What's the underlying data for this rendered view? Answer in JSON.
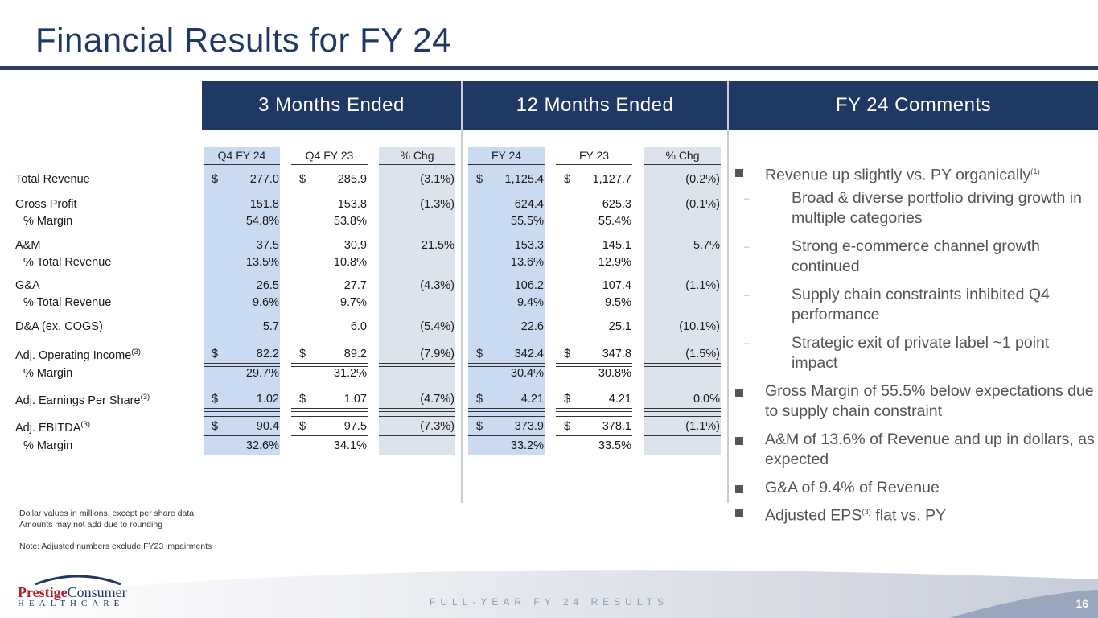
{
  "title": "Financial Results for FY 24",
  "headers": {
    "three_months": "3 Months Ended",
    "twelve_months": "12 Months Ended",
    "comments": "FY 24 Comments"
  },
  "columns": [
    "Q4 FY 24",
    "Q4 FY 23",
    "% Chg",
    "FY 24",
    "FY 23",
    "% Chg"
  ],
  "rows": [
    {
      "label": "Total Revenue",
      "sup": "",
      "dollar": true,
      "values": [
        "277.0",
        "285.9",
        "(3.1%)",
        "1,125.4",
        "1,127.7",
        "(0.2%)"
      ]
    },
    {
      "label": "Gross Profit",
      "sup": "",
      "dollar": false,
      "values": [
        "151.8",
        "153.8",
        "(1.3%)",
        "624.4",
        "625.3",
        "(0.1%)"
      ]
    },
    {
      "label": "% Margin",
      "sup": "",
      "dollar": false,
      "values": [
        "54.8%",
        "53.8%",
        "",
        "55.5%",
        "55.4%",
        ""
      ]
    },
    {
      "label": "A&M",
      "sup": "",
      "dollar": false,
      "values": [
        "37.5",
        "30.9",
        "21.5%",
        "153.3",
        "145.1",
        "5.7%"
      ]
    },
    {
      "label": "% Total Revenue",
      "sup": "",
      "dollar": false,
      "values": [
        "13.5%",
        "10.8%",
        "",
        "13.6%",
        "12.9%",
        ""
      ]
    },
    {
      "label": "G&A",
      "sup": "",
      "dollar": false,
      "values": [
        "26.5",
        "27.7",
        "(4.3%)",
        "106.2",
        "107.4",
        "(1.1%)"
      ]
    },
    {
      "label": "% Total Revenue",
      "sup": "",
      "dollar": false,
      "values": [
        "9.6%",
        "9.7%",
        "",
        "9.4%",
        "9.5%",
        ""
      ]
    },
    {
      "label": "D&A (ex. COGS)",
      "sup": "",
      "dollar": false,
      "values": [
        "5.7",
        "6.0",
        "(5.4%)",
        "22.6",
        "25.1",
        "(10.1%)"
      ]
    },
    {
      "label": "Adj. Operating Income",
      "sup": "(3)",
      "dollar": true,
      "values": [
        "82.2",
        "89.2",
        "(7.9%)",
        "342.4",
        "347.8",
        "(1.5%)"
      ]
    },
    {
      "label": "% Margin",
      "sup": "",
      "dollar": false,
      "values": [
        "29.7%",
        "31.2%",
        "",
        "30.4%",
        "30.8%",
        ""
      ]
    },
    {
      "label": "Adj. Earnings Per Share",
      "sup": "(3)",
      "dollar": true,
      "values": [
        "1.02",
        "1.07",
        "(4.7%)",
        "4.21",
        "4.21",
        "0.0%"
      ]
    },
    {
      "label": "Adj. EBITDA",
      "sup": "(3)",
      "dollar": true,
      "values": [
        "90.4",
        "97.5",
        "(7.3%)",
        "373.9",
        "378.1",
        "(1.1%)"
      ]
    },
    {
      "label": "% Margin",
      "sup": "",
      "dollar": false,
      "values": [
        "32.6%",
        "34.1%",
        "",
        "33.2%",
        "33.5%",
        ""
      ]
    }
  ],
  "dollar_sign": "$",
  "comments": [
    {
      "type": "bullet",
      "text": "Revenue up slightly vs. PY organically",
      "sup": "(1)"
    },
    {
      "type": "sub",
      "text": "Broad & diverse portfolio driving growth in multiple categories",
      "sup": ""
    },
    {
      "type": "sub",
      "text": "Strong e-commerce channel growth continued",
      "sup": ""
    },
    {
      "type": "sub",
      "text": "Supply chain constraints inhibited Q4 performance",
      "sup": ""
    },
    {
      "type": "sub",
      "text": "Strategic exit of private label ~1 point impact",
      "sup": ""
    },
    {
      "type": "bullet",
      "text": "Gross Margin of 55.5% below expectations due to supply chain constraint",
      "sup": ""
    },
    {
      "type": "bullet",
      "text": "A&M of 13.6% of Revenue and up in dollars, as expected",
      "sup": ""
    },
    {
      "type": "bullet",
      "text": "G&A of 9.4% of Revenue",
      "sup": ""
    },
    {
      "type": "bullet",
      "text": "Adjusted EPS",
      "sup": "(3)",
      "after": " flat vs. PY"
    }
  ],
  "notes": {
    "line1": "Dollar values in millions, except per share data",
    "line2": "Amounts may not add due to rounding",
    "line3": "Note: Adjusted numbers exclude FY23 impairments"
  },
  "logo": {
    "prestige": "Prestige",
    "consumer": "Consumer",
    "healthcare": "HEALTHCARE"
  },
  "footer": "FULL-YEAR FY 24 RESULTS",
  "page_number": "16"
}
